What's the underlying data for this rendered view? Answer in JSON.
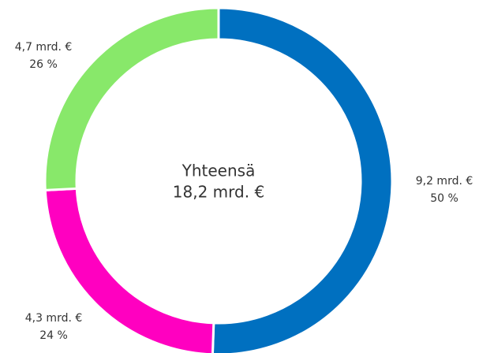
{
  "chart_data": {
    "type": "donut",
    "center_title": "Yhteensä",
    "total_label": "18,2 mrd. €",
    "values": [
      9.2,
      4.3,
      4.7
    ],
    "value_labels": [
      "9,2 mrd. €",
      "4,3 mrd. €",
      "4,7 mrd. €"
    ],
    "percents": [
      50,
      24,
      26
    ],
    "percent_labels": [
      "50 %",
      "24 %",
      "26 %"
    ],
    "colors": [
      "#0070c0",
      "#ff00c0",
      "#88e86a"
    ]
  }
}
